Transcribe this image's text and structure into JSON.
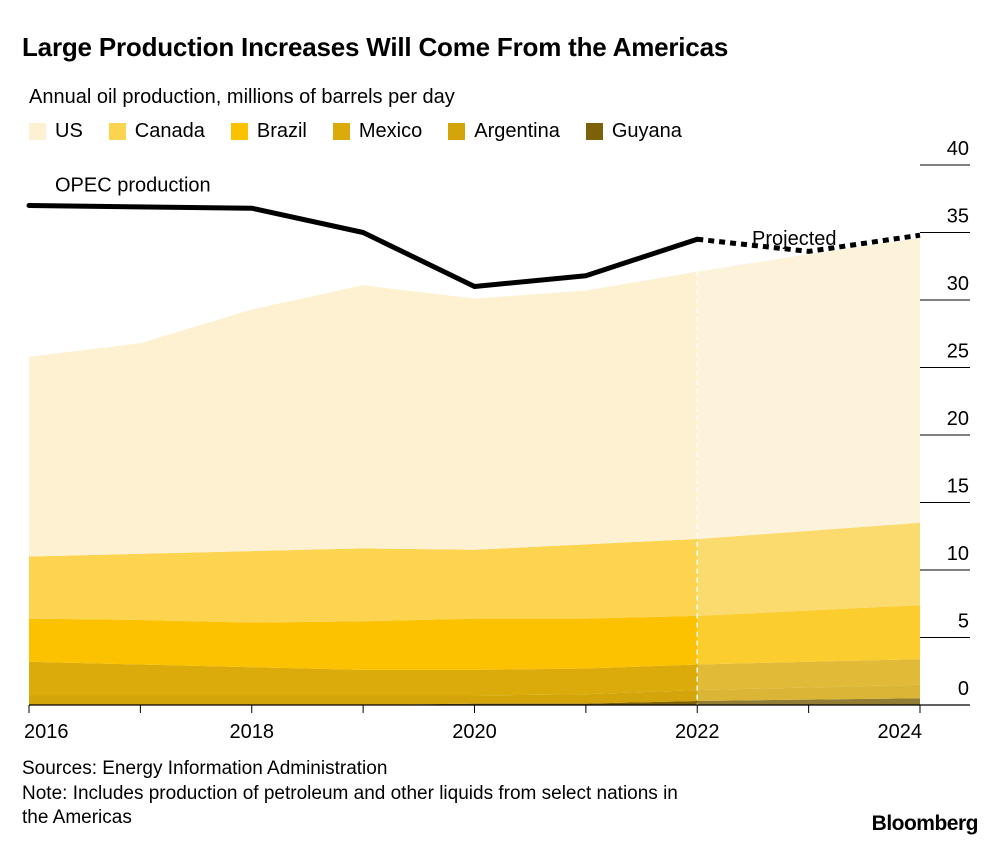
{
  "title": "Large Production Increases Will Come From the Americas",
  "subtitle": "Annual oil production, millions of barrels per day",
  "legend": [
    {
      "label": "US",
      "color": "#fdf1d2"
    },
    {
      "label": "Canada",
      "color": "#fcd44f"
    },
    {
      "label": "Brazil",
      "color": "#fcc200"
    },
    {
      "label": "Mexico",
      "color": "#dbab0b"
    },
    {
      "label": "Argentina",
      "color": "#d4a50a"
    },
    {
      "label": "Guyana",
      "color": "#7c6108"
    }
  ],
  "annotations": {
    "opec_label": "OPEC production",
    "projected_label": "Projected"
  },
  "sources": "Sources: Energy Information Administration",
  "note_line1": "Note: Includes production of petroleum and other liquids from select nations in",
  "note_line2": "the Americas",
  "brand": "Bloomberg",
  "chart_data": {
    "type": "area",
    "stacked": true,
    "x": [
      2016,
      2017,
      2018,
      2019,
      2020,
      2021,
      2022,
      2023,
      2024
    ],
    "x_ticks": [
      "2016",
      "2018",
      "2020",
      "2022",
      "2024"
    ],
    "y_ticks": [
      "0",
      "5",
      "10",
      "15",
      "20",
      "25",
      "30",
      "35",
      "40"
    ],
    "ylim": [
      0,
      40
    ],
    "projection_start": 2022,
    "series": [
      {
        "name": "Guyana",
        "color": "#7c6108",
        "values": [
          0,
          0,
          0,
          0,
          0.1,
          0.1,
          0.3,
          0.4,
          0.5
        ]
      },
      {
        "name": "Argentina",
        "color": "#d4a50a",
        "values": [
          0.7,
          0.7,
          0.7,
          0.7,
          0.6,
          0.7,
          0.8,
          0.9,
          1.0
        ]
      },
      {
        "name": "Mexico",
        "color": "#dbab0b",
        "values": [
          2.5,
          2.3,
          2.1,
          1.9,
          1.9,
          1.9,
          1.9,
          1.9,
          1.9
        ]
      },
      {
        "name": "Brazil",
        "color": "#fcc200",
        "values": [
          3.2,
          3.3,
          3.3,
          3.6,
          3.8,
          3.7,
          3.6,
          3.8,
          4.0
        ]
      },
      {
        "name": "Canada",
        "color": "#fcd44f",
        "values": [
          4.6,
          4.9,
          5.3,
          5.4,
          5.1,
          5.5,
          5.7,
          5.9,
          6.1
        ]
      },
      {
        "name": "US",
        "color": "#fdf1d2",
        "values": [
          14.8,
          15.6,
          17.9,
          19.5,
          18.6,
          18.8,
          19.8,
          20.5,
          21.1
        ]
      }
    ],
    "opec": {
      "name": "OPEC production",
      "x": [
        2016,
        2018,
        2019,
        2020,
        2021,
        2022,
        2023,
        2024
      ],
      "values": [
        37.0,
        36.8,
        35.0,
        31.0,
        31.8,
        34.5,
        33.6,
        34.8
      ],
      "projected_from": 2022
    }
  }
}
